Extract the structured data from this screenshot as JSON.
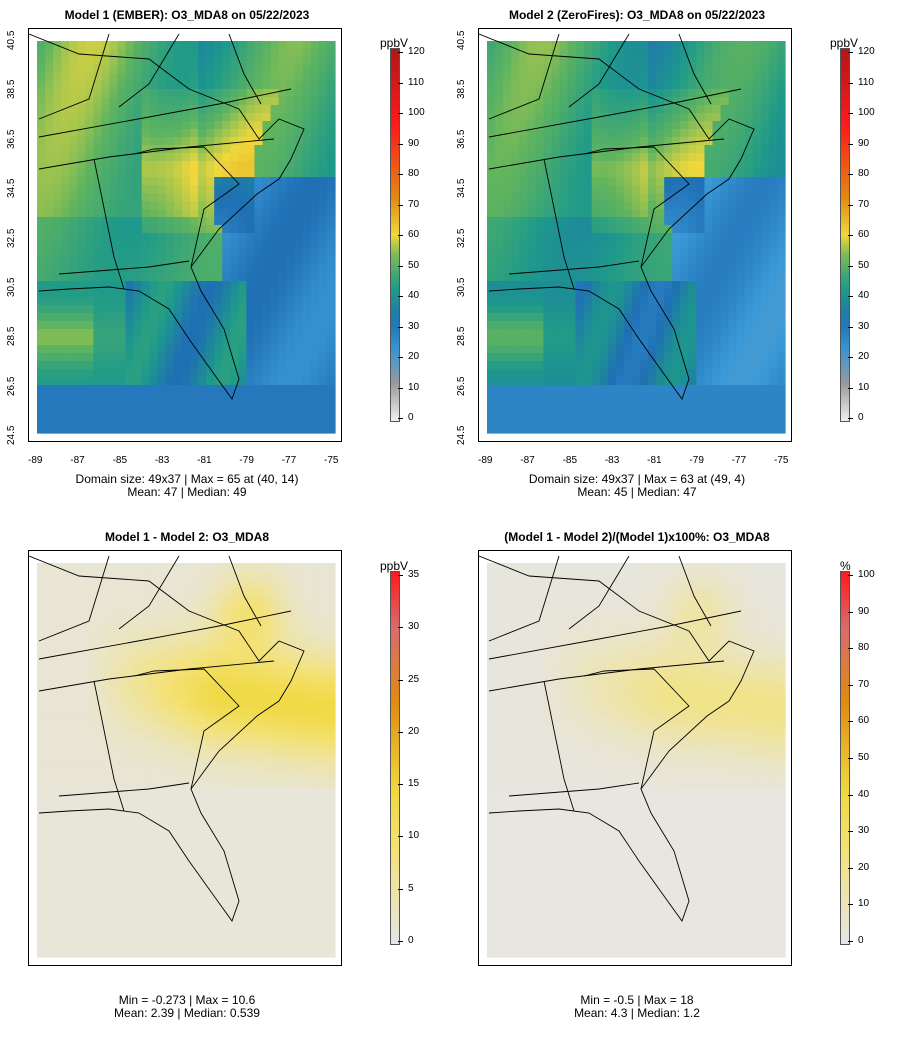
{
  "panels": [
    {
      "title": "Model 1 (EMBER): O3_MDA8 on 05/22/2023",
      "stats_line1": "Domain size: 49x37 | Max = 65 at (40, 14)",
      "stats_line2": "Mean: 47 |  Median: 49",
      "unit": "ppbV",
      "colorbar_labels": [
        "0",
        "10",
        "20",
        "30",
        "40",
        "50",
        "60",
        "70",
        "80",
        "90",
        "100",
        "110",
        "120"
      ],
      "palette": "conc",
      "shows_axes": true
    },
    {
      "title": "Model 2 (ZeroFires): O3_MDA8 on 05/22/2023",
      "stats_line1": "Domain size: 49x37 | Max = 63 at (49, 4)",
      "stats_line2": "Mean: 45 |  Median: 47",
      "unit": "ppbV",
      "colorbar_labels": [
        "0",
        "10",
        "20",
        "30",
        "40",
        "50",
        "60",
        "70",
        "80",
        "90",
        "100",
        "110",
        "120"
      ],
      "palette": "conc",
      "shows_axes": true
    },
    {
      "title": "Model 1 - Model 2: O3_MDA8",
      "stats_line1": "Min = -0.273 | Max = 10.6",
      "stats_line2": "Mean: 2.39 |  Median: 0.539",
      "unit": "ppbV",
      "colorbar_labels": [
        "0",
        "5",
        "10",
        "15",
        "20",
        "25",
        "30",
        "35"
      ],
      "palette": "diff",
      "shows_axes": false
    },
    {
      "title": "(Model 1 - Model 2)/(Model 1)x100%: O3_MDA8",
      "stats_line1": "Min = -0.5 | Max = 18",
      "stats_line2": "Mean: 4.3 |  Median: 1.2",
      "unit": "%",
      "colorbar_labels": [
        "0",
        "10",
        "20",
        "30",
        "40",
        "50",
        "60",
        "70",
        "80",
        "90",
        "100"
      ],
      "palette": "diff",
      "shows_axes": false
    }
  ],
  "axes": {
    "x_ticks": [
      "-89",
      "-87",
      "-85",
      "-83",
      "-81",
      "-79",
      "-77",
      "-75"
    ],
    "y_ticks": [
      "24.5",
      "26.5",
      "28.5",
      "30.5",
      "32.5",
      "34.5",
      "36.5",
      "38.5",
      "40.5"
    ]
  },
  "colors": {
    "gray": "#e6e6e6",
    "blue": "#3b9ad8",
    "teal": "#1e9a8a",
    "green": "#5fb45f",
    "yellow": "#f0d83c",
    "orange": "#e08a12",
    "red": "#ff1a1a"
  }
}
